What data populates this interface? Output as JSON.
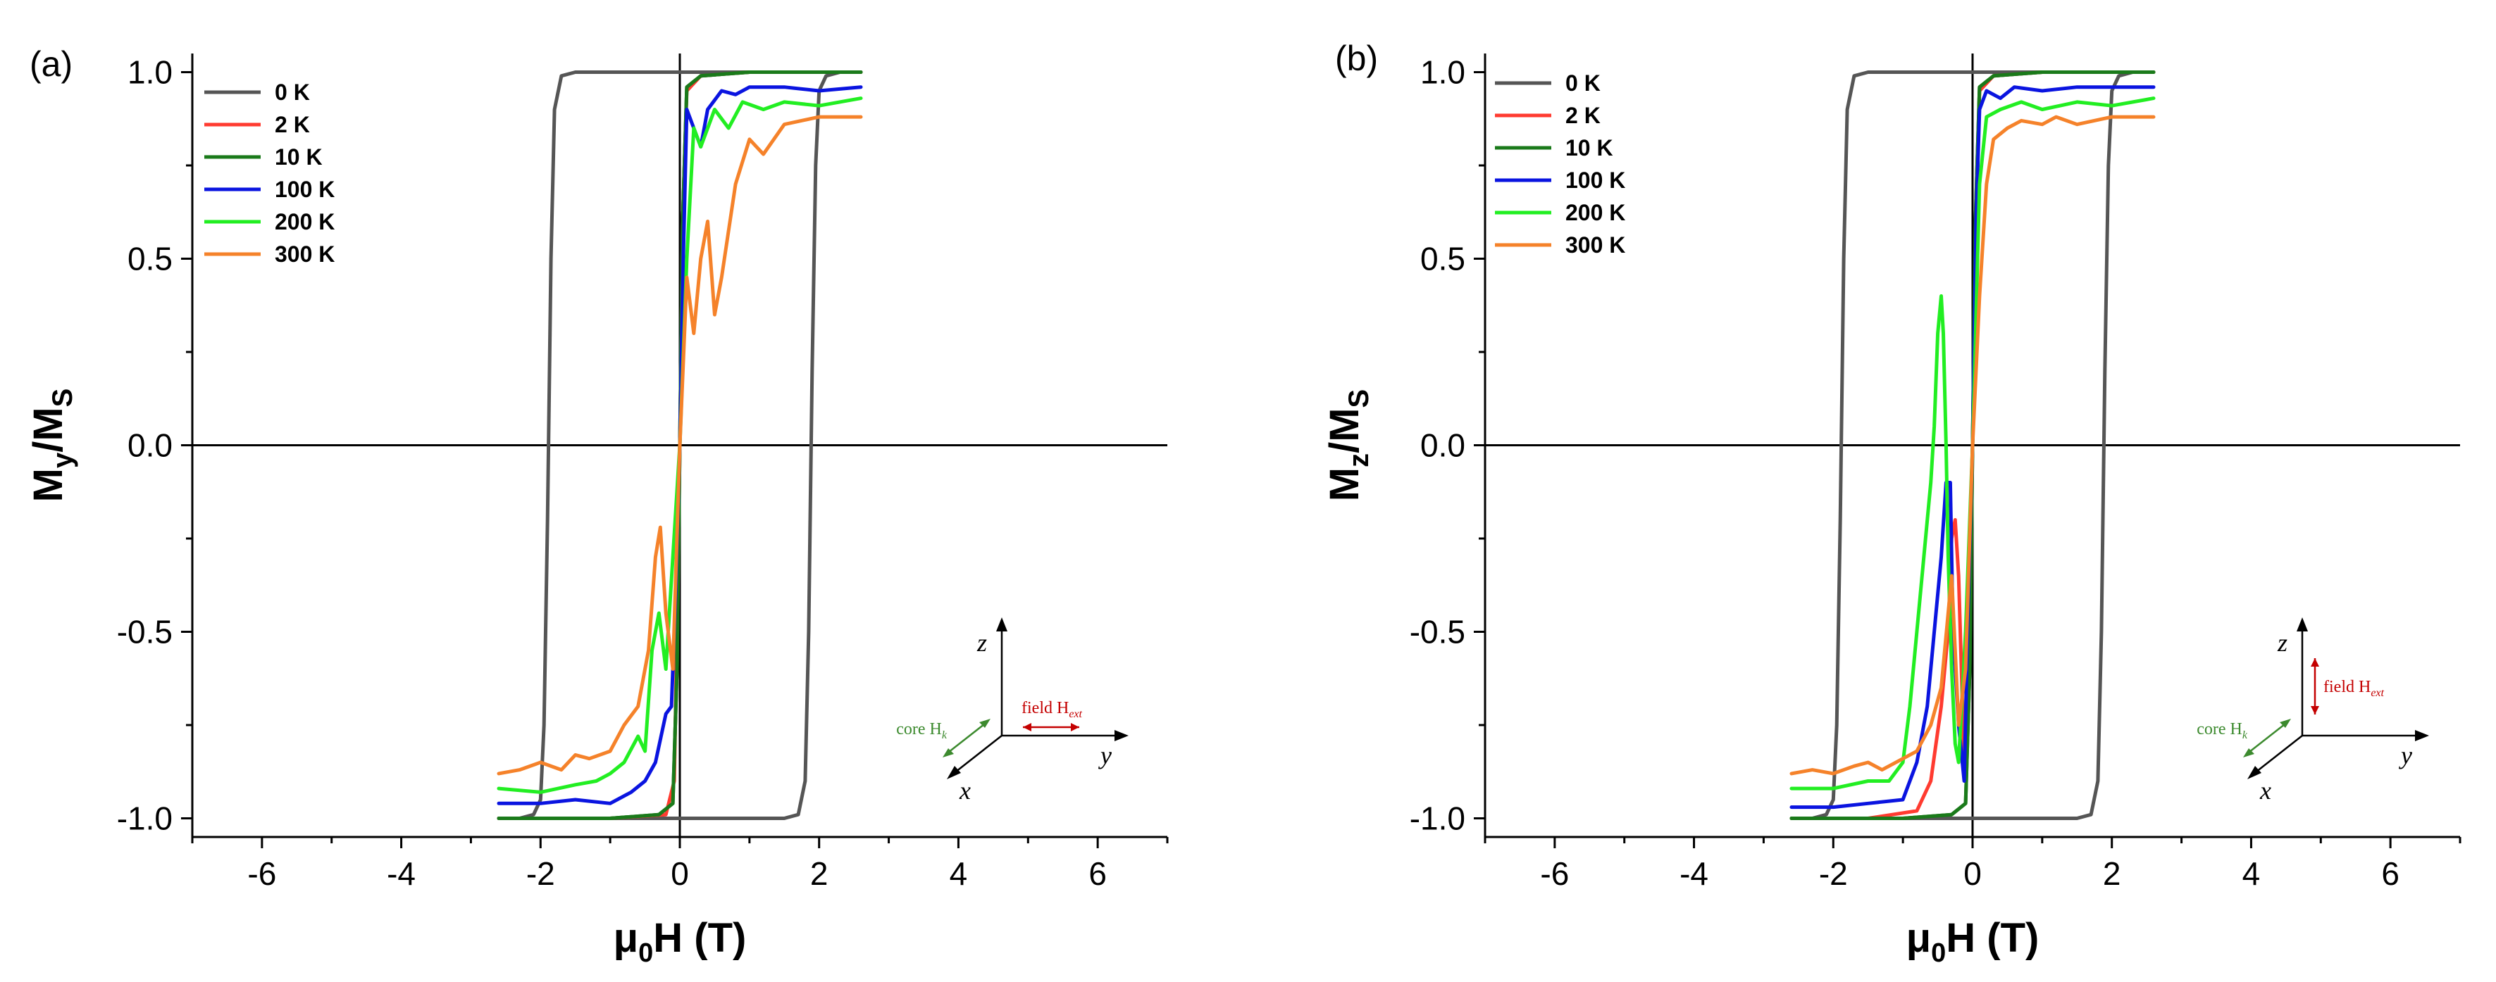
{
  "colors": {
    "t0": "#555555",
    "t2": "#ff3b30",
    "t10": "#1a7a1a",
    "t100": "#0a14e0",
    "t200": "#22ee22",
    "t300": "#f5822a",
    "field": "#c40000",
    "core": "#3c8a2e"
  },
  "chart_data": [
    {
      "type": "line",
      "panel": "(a)",
      "xlabel_main": "μ",
      "xlabel_sub": "0",
      "xlabel_rest": "H (T)",
      "ylabel_main": "M",
      "ylabel_sub1": "y",
      "ylabel_sep": "/M",
      "ylabel_sub2": "S",
      "xlim": [
        -7,
        7
      ],
      "ylim": [
        -1.05,
        1.05
      ],
      "xticks": [
        -6,
        -4,
        -2,
        0,
        2,
        4,
        6
      ],
      "xtick_labels": [
        "-6",
        "-4",
        "-2",
        "0",
        "2",
        "4",
        "6"
      ],
      "yticks": [
        -1.0,
        -0.5,
        0.0,
        0.5,
        1.0
      ],
      "ytick_labels": [
        "-1.0",
        "-0.5",
        "0.0",
        "0.5",
        "1.0"
      ],
      "legend": [
        "0 K",
        "2 K",
        "10 K",
        "100 K",
        "200 K",
        "300 K"
      ],
      "inset": {
        "z": "z",
        "y": "y",
        "x": "x",
        "core": "core H",
        "core_sub": "k",
        "field": "field H",
        "field_sub": "ext",
        "field_dir": "y"
      },
      "series": [
        {
          "name": "0 K",
          "color_key": "t0",
          "x": [
            -2.6,
            -2.3,
            -2.1,
            -2.0,
            -1.95,
            -1.9,
            -1.85,
            -1.8,
            -1.7,
            -1.5,
            -1.0,
            0,
            1.0,
            2.6
          ],
          "y": [
            -1,
            -1,
            -0.99,
            -0.95,
            -0.75,
            -0.2,
            0.5,
            0.9,
            0.99,
            1,
            1,
            1,
            1,
            1
          ]
        },
        {
          "name": "0 K",
          "color_key": "t0",
          "x": [
            2.6,
            2.3,
            2.1,
            2.0,
            1.95,
            1.9,
            1.85,
            1.8,
            1.7,
            1.5,
            1.0,
            0,
            -1.0,
            -2.6
          ],
          "y": [
            1,
            1,
            0.99,
            0.95,
            0.75,
            0.2,
            -0.5,
            -0.9,
            -0.99,
            -1,
            -1,
            -1,
            -1,
            -1
          ]
        },
        {
          "name": "2 K",
          "color_key": "t2",
          "x": [
            -2.6,
            -1.0,
            -0.2,
            -0.08,
            -0.04,
            0,
            0.04,
            0.1,
            0.3,
            1.0,
            2.6
          ],
          "y": [
            -1,
            -1,
            -0.99,
            -0.9,
            -0.5,
            0,
            0.6,
            0.95,
            0.99,
            1,
            1
          ]
        },
        {
          "name": "10 K",
          "color_key": "t10",
          "x": [
            -2.6,
            -1.0,
            -0.3,
            -0.1,
            -0.04,
            0,
            0.04,
            0.1,
            0.3,
            1.0,
            2.6
          ],
          "y": [
            -1,
            -1,
            -0.99,
            -0.96,
            -0.6,
            0,
            0.6,
            0.96,
            0.99,
            1,
            1
          ]
        },
        {
          "name": "10 K",
          "color_key": "t10",
          "x": [
            2.6,
            1.0,
            0.3,
            0.1,
            0.04,
            0,
            -0.04,
            -0.1,
            -0.3,
            -1.0,
            -2.6
          ],
          "y": [
            1,
            1,
            0.99,
            0.96,
            0.6,
            0,
            -0.6,
            -0.96,
            -0.99,
            -1,
            -1
          ]
        },
        {
          "name": "100 K",
          "color_key": "t100",
          "x": [
            -2.6,
            -2.0,
            -1.5,
            -1.0,
            -0.7,
            -0.5,
            -0.35,
            -0.2,
            -0.12,
            -0.06,
            0,
            0.05,
            0.1,
            0.2,
            0.3,
            0.4,
            0.6,
            0.8,
            1.0,
            1.5,
            2.0,
            2.6
          ],
          "y": [
            -0.96,
            -0.96,
            -0.95,
            -0.96,
            -0.93,
            -0.9,
            -0.85,
            -0.72,
            -0.7,
            -0.4,
            0,
            0.5,
            0.9,
            0.85,
            0.8,
            0.9,
            0.95,
            0.94,
            0.96,
            0.96,
            0.95,
            0.96
          ]
        },
        {
          "name": "200 K",
          "color_key": "t200",
          "x": [
            -2.6,
            -2.0,
            -1.5,
            -1.2,
            -1.0,
            -0.8,
            -0.6,
            -0.5,
            -0.4,
            -0.3,
            -0.2,
            -0.1,
            0,
            0.1,
            0.2,
            0.3,
            0.5,
            0.7,
            0.9,
            1.2,
            1.5,
            2.0,
            2.6
          ],
          "y": [
            -0.92,
            -0.93,
            -0.91,
            -0.9,
            -0.88,
            -0.85,
            -0.78,
            -0.82,
            -0.55,
            -0.45,
            -0.6,
            -0.3,
            0,
            0.5,
            0.85,
            0.8,
            0.9,
            0.85,
            0.92,
            0.9,
            0.92,
            0.91,
            0.93
          ]
        },
        {
          "name": "300 K",
          "color_key": "t300",
          "x": [
            -2.6,
            -2.3,
            -2.0,
            -1.7,
            -1.5,
            -1.3,
            -1.0,
            -0.8,
            -0.6,
            -0.45,
            -0.35,
            -0.28,
            -0.2,
            -0.1,
            0,
            0.1,
            0.2,
            0.3,
            0.4,
            0.5,
            0.6,
            0.8,
            1.0,
            1.2,
            1.5,
            2.0,
            2.6
          ],
          "y": [
            -0.88,
            -0.87,
            -0.85,
            -0.87,
            -0.83,
            -0.84,
            -0.82,
            -0.75,
            -0.7,
            -0.55,
            -0.3,
            -0.22,
            -0.45,
            -0.6,
            0,
            0.45,
            0.3,
            0.5,
            0.6,
            0.35,
            0.45,
            0.7,
            0.82,
            0.78,
            0.86,
            0.88,
            0.88
          ]
        }
      ]
    },
    {
      "type": "line",
      "panel": "(b)",
      "xlabel_main": "μ",
      "xlabel_sub": "0",
      "xlabel_rest": "H (T)",
      "ylabel_main": "M",
      "ylabel_sub1": "z",
      "ylabel_sep": "/M",
      "ylabel_sub2": "S",
      "xlim": [
        -7,
        7
      ],
      "ylim": [
        -1.05,
        1.05
      ],
      "xticks": [
        -6,
        -4,
        -2,
        0,
        2,
        4,
        6
      ],
      "xtick_labels": [
        "-6",
        "-4",
        "-2",
        "0",
        "2",
        "4",
        "6"
      ],
      "yticks": [
        -1.0,
        -0.5,
        0.0,
        0.5,
        1.0
      ],
      "ytick_labels": [
        "-1.0",
        "-0.5",
        "0.0",
        "0.5",
        "1.0"
      ],
      "legend": [
        "0 K",
        "2 K",
        "10 K",
        "100 K",
        "200 K",
        "300 K"
      ],
      "inset": {
        "z": "z",
        "y": "y",
        "x": "x",
        "core": "core H",
        "core_sub": "k",
        "field": "field H",
        "field_sub": "ext",
        "field_dir": "z"
      },
      "series": [
        {
          "name": "0 K",
          "color_key": "t0",
          "x": [
            -2.6,
            -2.3,
            -2.1,
            -2.0,
            -1.95,
            -1.9,
            -1.85,
            -1.8,
            -1.7,
            -1.5,
            -1.0,
            0,
            1.0,
            2.6
          ],
          "y": [
            -1,
            -1,
            -0.99,
            -0.95,
            -0.75,
            -0.2,
            0.5,
            0.9,
            0.99,
            1,
            1,
            1,
            1,
            1
          ]
        },
        {
          "name": "0 K",
          "color_key": "t0",
          "x": [
            2.6,
            2.3,
            2.1,
            2.0,
            1.95,
            1.9,
            1.85,
            1.8,
            1.7,
            1.5,
            1.0,
            0,
            -1.0,
            -2.6
          ],
          "y": [
            1,
            1,
            0.99,
            0.95,
            0.75,
            0.2,
            -0.5,
            -0.9,
            -0.99,
            -1,
            -1,
            -1,
            -1,
            -1
          ]
        },
        {
          "name": "2 K",
          "color_key": "t2",
          "x": [
            -2.6,
            -1.5,
            -0.8,
            -0.6,
            -0.45,
            -0.35,
            -0.3,
            -0.25,
            -0.2,
            -0.12,
            -0.06,
            0,
            0.05,
            0.1,
            0.3,
            1.0,
            2.6
          ],
          "y": [
            -1,
            -1,
            -0.98,
            -0.9,
            -0.7,
            -0.5,
            -0.25,
            -0.2,
            -0.35,
            -0.85,
            -0.5,
            0,
            0.6,
            0.95,
            0.99,
            1,
            1
          ]
        },
        {
          "name": "10 K",
          "color_key": "t10",
          "x": [
            -2.6,
            -1.0,
            -0.3,
            -0.1,
            -0.04,
            0,
            0.04,
            0.1,
            0.3,
            1.0,
            2.6
          ],
          "y": [
            -1,
            -1,
            -0.99,
            -0.96,
            -0.6,
            0,
            0.6,
            0.96,
            0.99,
            1,
            1
          ]
        },
        {
          "name": "10 K",
          "color_key": "t10",
          "x": [
            2.6,
            1.0,
            0.3,
            0.1,
            0.04,
            0,
            -0.04,
            -0.1,
            -0.3,
            -1.0,
            -2.6
          ],
          "y": [
            1,
            1,
            0.99,
            0.96,
            0.6,
            0,
            -0.6,
            -0.96,
            -0.99,
            -1,
            -1
          ]
        },
        {
          "name": "100 K",
          "color_key": "t100",
          "x": [
            -2.6,
            -2.0,
            -1.5,
            -1.0,
            -0.8,
            -0.65,
            -0.55,
            -0.45,
            -0.38,
            -0.32,
            -0.28,
            -0.2,
            -0.12,
            -0.06,
            0,
            0.05,
            0.1,
            0.2,
            0.4,
            0.6,
            1.0,
            1.5,
            2.0,
            2.6
          ],
          "y": [
            -0.97,
            -0.97,
            -0.96,
            -0.95,
            -0.85,
            -0.7,
            -0.5,
            -0.3,
            -0.1,
            -0.1,
            -0.5,
            -0.75,
            -0.9,
            -0.4,
            0,
            0.6,
            0.9,
            0.95,
            0.93,
            0.96,
            0.95,
            0.96,
            0.96,
            0.96
          ]
        },
        {
          "name": "200 K",
          "color_key": "t200",
          "x": [
            -2.6,
            -2.0,
            -1.5,
            -1.2,
            -1.0,
            -0.9,
            -0.8,
            -0.7,
            -0.6,
            -0.55,
            -0.5,
            -0.45,
            -0.42,
            -0.38,
            -0.35,
            -0.3,
            -0.25,
            -0.2,
            -0.1,
            0,
            0.1,
            0.2,
            0.4,
            0.7,
            1.0,
            1.5,
            2.0,
            2.6
          ],
          "y": [
            -0.92,
            -0.92,
            -0.9,
            -0.9,
            -0.85,
            -0.7,
            -0.5,
            -0.3,
            -0.1,
            0.05,
            0.3,
            0.4,
            0.3,
            0.0,
            -0.3,
            -0.6,
            -0.8,
            -0.85,
            -0.5,
            0,
            0.7,
            0.88,
            0.9,
            0.92,
            0.9,
            0.92,
            0.91,
            0.93
          ]
        },
        {
          "name": "300 K",
          "color_key": "t300",
          "x": [
            -2.6,
            -2.3,
            -2.0,
            -1.7,
            -1.5,
            -1.3,
            -1.0,
            -0.8,
            -0.6,
            -0.45,
            -0.35,
            -0.3,
            -0.25,
            -0.2,
            -0.1,
            0,
            0.1,
            0.2,
            0.3,
            0.5,
            0.7,
            1.0,
            1.2,
            1.5,
            2.0,
            2.6
          ],
          "y": [
            -0.88,
            -0.87,
            -0.88,
            -0.86,
            -0.85,
            -0.87,
            -0.84,
            -0.82,
            -0.75,
            -0.65,
            -0.45,
            -0.35,
            -0.55,
            -0.75,
            -0.6,
            0,
            0.4,
            0.7,
            0.82,
            0.85,
            0.87,
            0.86,
            0.88,
            0.86,
            0.88,
            0.88
          ]
        }
      ]
    }
  ]
}
